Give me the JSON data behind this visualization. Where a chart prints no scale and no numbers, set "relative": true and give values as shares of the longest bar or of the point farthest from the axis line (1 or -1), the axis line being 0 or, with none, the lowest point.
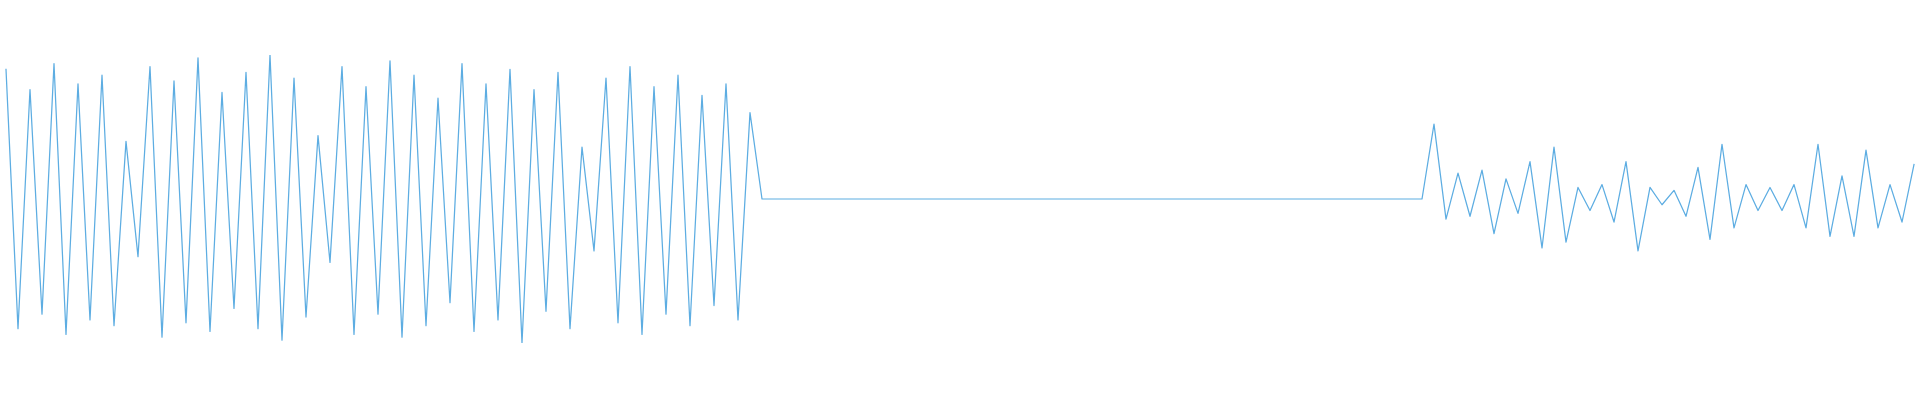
{
  "chart_data": {
    "type": "line",
    "relative": true,
    "color": "#5dade2",
    "marker": "none",
    "line_style": "solid",
    "legend": false,
    "categories": [
      null,
      null,
      null,
      null,
      null,
      null,
      null,
      null,
      null,
      null,
      null,
      null,
      null,
      null,
      null,
      null,
      null,
      null,
      null,
      null,
      null,
      null,
      null,
      null,
      null,
      null,
      null,
      null,
      null,
      null,
      null,
      null,
      null,
      null,
      null,
      null,
      null,
      null,
      null,
      null,
      null,
      null,
      null,
      null,
      null,
      null,
      null,
      null,
      null,
      null,
      null,
      null,
      null,
      null,
      null,
      null,
      null,
      null,
      null,
      null,
      null,
      null,
      null,
      null,
      null,
      null,
      null,
      null,
      null,
      null,
      null,
      null,
      null,
      null,
      null,
      null,
      null,
      null,
      null,
      null,
      null,
      null,
      null,
      null,
      null,
      null,
      null,
      null,
      null,
      null,
      null,
      null,
      null,
      null,
      null,
      null,
      null,
      null,
      null,
      null,
      null,
      null,
      null,
      null,
      null,
      null,
      null,
      null,
      null,
      null,
      null,
      null,
      null,
      null,
      null,
      null,
      null,
      null,
      null,
      null,
      null,
      null,
      null,
      null,
      null,
      null,
      null,
      null,
      null,
      null,
      null,
      null,
      null,
      null,
      null,
      null,
      null,
      null,
      null,
      null,
      null,
      null,
      null,
      null,
      null,
      null,
      null,
      null,
      null,
      null,
      null,
      null,
      null,
      null,
      null,
      null,
      null,
      null,
      null,
      null
    ],
    "values": [
      0.95,
      0.05,
      0.88,
      0.1,
      0.97,
      0.03,
      0.9,
      0.08,
      0.93,
      0.06,
      0.7,
      0.3,
      0.96,
      0.02,
      0.91,
      0.07,
      0.99,
      0.04,
      0.87,
      0.12,
      0.94,
      0.05,
      1.0,
      0.01,
      0.92,
      0.09,
      0.72,
      0.28,
      0.96,
      0.03,
      0.89,
      0.1,
      0.98,
      0.02,
      0.93,
      0.06,
      0.85,
      0.14,
      0.97,
      0.04,
      0.9,
      0.08,
      0.95,
      0.0,
      0.88,
      0.11,
      0.94,
      0.05,
      0.68,
      0.32,
      0.92,
      0.07,
      0.96,
      0.03,
      0.89,
      0.1,
      0.93,
      0.06,
      0.86,
      0.13,
      0.9,
      0.08,
      0.8,
      0.5,
      0.5,
      0.5,
      0.5,
      0.5,
      0.5,
      0.5,
      0.5,
      0.5,
      0.5,
      0.5,
      0.5,
      0.5,
      0.5,
      0.5,
      0.5,
      0.5,
      0.5,
      0.5,
      0.5,
      0.5,
      0.5,
      0.5,
      0.5,
      0.5,
      0.5,
      0.5,
      0.5,
      0.5,
      0.5,
      0.5,
      0.5,
      0.5,
      0.5,
      0.5,
      0.5,
      0.5,
      0.5,
      0.5,
      0.5,
      0.5,
      0.5,
      0.5,
      0.5,
      0.5,
      0.5,
      0.5,
      0.5,
      0.5,
      0.5,
      0.5,
      0.5,
      0.5,
      0.5,
      0.5,
      0.5,
      0.76,
      0.43,
      0.59,
      0.44,
      0.6,
      0.38,
      0.57,
      0.45,
      0.63,
      0.33,
      0.68,
      0.35,
      0.54,
      0.46,
      0.55,
      0.42,
      0.63,
      0.32,
      0.54,
      0.48,
      0.53,
      0.44,
      0.61,
      0.36,
      0.69,
      0.4,
      0.55,
      0.46,
      0.54,
      0.46,
      0.55,
      0.4,
      0.69,
      0.37,
      0.58,
      0.37,
      0.67,
      0.4,
      0.55,
      0.42,
      0.62
    ]
  }
}
